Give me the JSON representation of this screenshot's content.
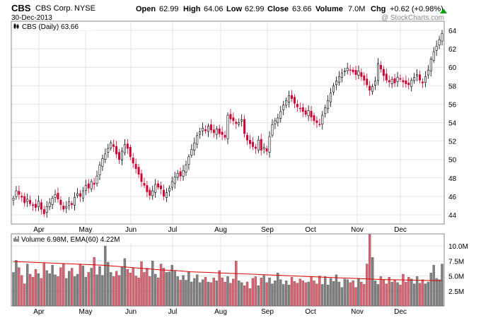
{
  "header": {
    "symbol": "CBS",
    "company": "CBS Corp.",
    "exchange": "NYSE",
    "date": "30-Dec-2013",
    "open_label": "Open",
    "open": "62.99",
    "high_label": "High",
    "high": "64.06",
    "low_label": "Low",
    "low": "62.99",
    "close_label": "Close",
    "close": "63.66",
    "volume_label": "Volume",
    "volume": "7.0M",
    "chg_label": "Chg",
    "chg": "+0.62 (+0.98%)",
    "watermark": "@ StockCharts.com"
  },
  "price_panel": {
    "legend": "CBS (Daily) 63.66"
  },
  "volume_panel": {
    "legend": "Volume 6.98M, EMA(60) 4.22M"
  },
  "colors": {
    "up": "#000000",
    "down": "#cc0033",
    "vol_up": "#808080",
    "vol_down": "#e06070",
    "ema": "#dd0000",
    "grid": "#e4e4e4",
    "up_arrow": "#00a000"
  },
  "chart_data": [
    {
      "type": "candlestick",
      "title": "CBS (Daily) 63.66",
      "x_months": [
        "Apr",
        "May",
        "Jun",
        "Jul",
        "Aug",
        "Sep",
        "Oct",
        "Nov",
        "Dec"
      ],
      "y_ticks": [
        44,
        46,
        48,
        50,
        52,
        54,
        56,
        58,
        60,
        62,
        64
      ],
      "ylim": [
        43,
        65
      ],
      "grid": true,
      "close_series": [
        45.8,
        46.6,
        46.2,
        45.9,
        45.3,
        45.7,
        45.2,
        45.0,
        44.8,
        45.5,
        44.6,
        44.1,
        44.9,
        45.3,
        45.8,
        46.2,
        45.7,
        45.1,
        44.6,
        44.9,
        45.4,
        45.1,
        45.9,
        46.3,
        46.0,
        46.6,
        47.2,
        46.9,
        47.6,
        47.3,
        48.2,
        49.4,
        50.1,
        50.6,
        51.2,
        51.8,
        51.4,
        50.6,
        50.0,
        50.9,
        51.6,
        51.2,
        50.3,
        49.6,
        49.0,
        48.4,
        47.6,
        47.2,
        46.5,
        46.1,
        46.6,
        47.3,
        47.0,
        46.8,
        46.0,
        46.4,
        46.9,
        47.6,
        48.1,
        48.5,
        48.2,
        48.8,
        49.4,
        50.3,
        51.1,
        51.8,
        52.6,
        53.0,
        53.4,
        53.1,
        53.6,
        53.2,
        52.9,
        53.3,
        52.8,
        52.7,
        52.4,
        54.8,
        54.4,
        54.2,
        53.9,
        54.0,
        54.3,
        52.8,
        52.1,
        51.7,
        51.4,
        51.2,
        52.1,
        51.0,
        51.3,
        50.9,
        52.5,
        53.8,
        54.2,
        54.5,
        55.2,
        55.9,
        56.4,
        56.9,
        56.6,
        56.1,
        55.7,
        55.5,
        55.2,
        54.9,
        55.3,
        54.6,
        54.2,
        54.0,
        53.8,
        54.8,
        55.6,
        56.4,
        57.2,
        58.0,
        58.5,
        59.0,
        59.4,
        59.6,
        59.9,
        59.7,
        59.5,
        59.2,
        59.6,
        59.0,
        58.6,
        58.1,
        57.5,
        57.9,
        58.5,
        60.4,
        59.8,
        59.1,
        58.6,
        58.4,
        58.7,
        58.3,
        58.9,
        58.7,
        58.4,
        58.2,
        58.1,
        58.6,
        58.9,
        59.2,
        58.6,
        58.3,
        59.0,
        59.7,
        60.9,
        61.7,
        62.3,
        63.0,
        63.66
      ]
    },
    {
      "type": "bar",
      "title": "Volume 6.98M, EMA(60) 4.22M",
      "y_ticks": [
        "2.5M",
        "5.0M",
        "7.5M",
        "10.0M"
      ],
      "ylim": [
        0,
        12
      ],
      "volume_series_millions": [
        5.6,
        7.6,
        6.4,
        5.1,
        3.7,
        7.0,
        5.3,
        4.8,
        6.1,
        5.4,
        4.6,
        7.1,
        5.9,
        5.4,
        6.8,
        5.2,
        4.9,
        6.4,
        7.0,
        4.6,
        5.8,
        6.3,
        4.9,
        5.3,
        7.0,
        6.7,
        4.8,
        5.6,
        6.3,
        8.1,
        5.2,
        6.6,
        5.1,
        10.0,
        7.3,
        5.6,
        4.9,
        5.8,
        5.1,
        6.5,
        7.9,
        6.1,
        5.5,
        6.3,
        5.0,
        4.7,
        7.4,
        5.6,
        6.3,
        4.9,
        7.5,
        5.3,
        4.7,
        7.0,
        6.3,
        5.6,
        5.7,
        6.8,
        5.8,
        4.9,
        4.3,
        5.1,
        4.3,
        5.7,
        4.0,
        4.6,
        5.2,
        3.9,
        4.4,
        4.8,
        4.0,
        3.9,
        4.7,
        4.2,
        5.9,
        4.7,
        4.0,
        4.9,
        3.8,
        4.5,
        7.5,
        4.2,
        3.9,
        3.4,
        4.0,
        2.9,
        4.6,
        4.9,
        3.4,
        4.7,
        5.1,
        3.9,
        4.7,
        3.7,
        4.2,
        5.5,
        4.4,
        3.6,
        4.2,
        3.5,
        4.8,
        4.1,
        3.8,
        4.5,
        4.2,
        3.9,
        4.0,
        4.9,
        4.2,
        3.7,
        5.0,
        3.6,
        4.9,
        3.5,
        4.6,
        4.1,
        5.2,
        4.0,
        3.1,
        4.5,
        4.4,
        3.9,
        4.2,
        3.1,
        4.6,
        4.0,
        3.6,
        7.0,
        11.9,
        8.1,
        4.2,
        3.6,
        4.9,
        4.4,
        3.7,
        4.8,
        4.0,
        4.4,
        3.9,
        3.5,
        5.3,
        4.0,
        4.8,
        4.5,
        3.7,
        4.9,
        3.8,
        4.4,
        3.7,
        4.0,
        5.5,
        6.8,
        4.6,
        4.4,
        7.0
      ],
      "ema_series_millions": [
        7.4,
        7.3,
        7.2,
        7.1,
        7.0,
        6.9,
        6.8,
        6.6,
        6.4,
        6.2,
        6.0,
        5.9,
        5.7,
        5.6,
        5.5,
        5.4,
        5.3,
        5.2,
        5.1,
        5.0,
        4.9,
        4.8,
        4.7,
        4.6,
        4.5,
        4.4,
        4.35,
        4.3,
        4.25,
        4.22
      ]
    }
  ]
}
